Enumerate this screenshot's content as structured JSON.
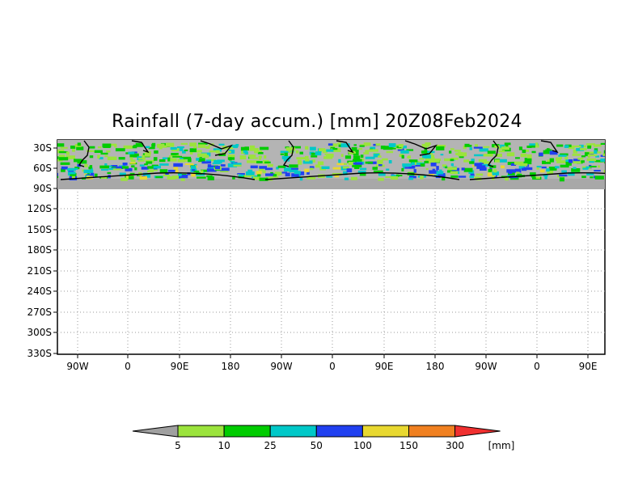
{
  "title": "Rainfall (7-day accum.) [mm] 20Z08Feb2024",
  "map": {
    "lat_labels": [
      "30S",
      "60S",
      "90S",
      "120S",
      "150S",
      "180S",
      "210S",
      "240S",
      "270S",
      "300S",
      "330S"
    ],
    "lon_labels": [
      "90W",
      "0",
      "90E",
      "180",
      "90W",
      "0",
      "90E",
      "180",
      "90W",
      "0",
      "90E"
    ],
    "data_rows_label_coverage": "30S to 90S",
    "background_land_color": "#a9a9a9",
    "ocean_color": "#bdbdbd"
  },
  "legend": {
    "unit": "[mm]",
    "low_arrow_color": "#a0a0a0",
    "high_arrow_color": "#f03030",
    "bins": [
      {
        "label": "5",
        "color": "#9be33c"
      },
      {
        "label": "10",
        "color": "#00cc00"
      },
      {
        "label": "25",
        "color": "#00c8c8"
      },
      {
        "label": "50",
        "color": "#2040f0"
      },
      {
        "label": "100",
        "color": "#e8d830"
      },
      {
        "label": "150",
        "color": "#f08020"
      },
      {
        "label": "300",
        "color": "#f03030"
      }
    ]
  }
}
